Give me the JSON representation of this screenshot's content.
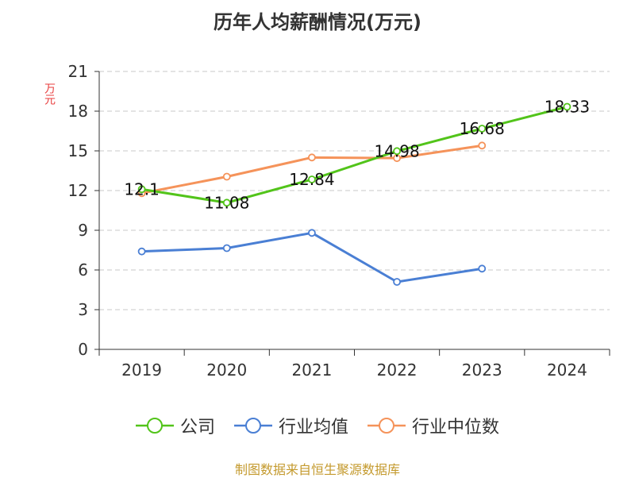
{
  "source_text": "制图数据来自恒生聚源数据库",
  "chart_data": {
    "type": "line",
    "title": "历年人均薪酬情况(万元)",
    "ylabel": "万元",
    "xlabel": "",
    "categories": [
      "2019",
      "2020",
      "2021",
      "2022",
      "2023",
      "2024"
    ],
    "ylim": [
      0,
      21
    ],
    "yticks": [
      0,
      3,
      6,
      9,
      12,
      15,
      18,
      21
    ],
    "grid": true,
    "legend_position": "bottom",
    "series": [
      {
        "name": "公司",
        "color": "#52c41a",
        "values": [
          12.1,
          11.08,
          12.84,
          14.98,
          16.68,
          18.33
        ],
        "labels": [
          "12.1",
          "11.08",
          "12.84",
          "14.98",
          "16.68",
          "18.33"
        ]
      },
      {
        "name": "行业均值",
        "color": "#4a7fd4",
        "values": [
          7.4,
          7.65,
          8.8,
          5.1,
          6.1,
          null
        ]
      },
      {
        "name": "行业中位数",
        "color": "#f5935a",
        "values": [
          11.8,
          13.05,
          14.5,
          14.45,
          15.4,
          null
        ]
      }
    ]
  }
}
